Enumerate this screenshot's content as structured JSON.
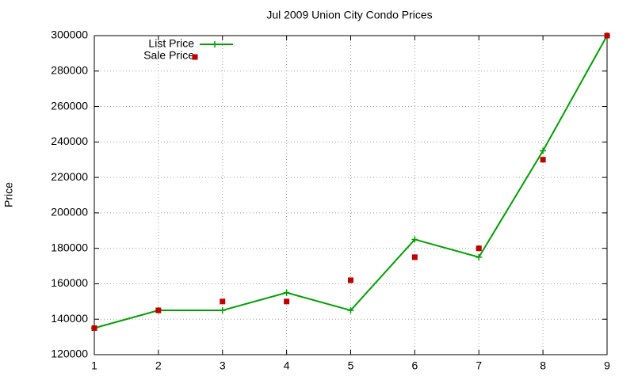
{
  "chart_data": {
    "type": "line",
    "title": "Jul 2009 Union City Condo Prices",
    "y_label": "Price",
    "x": [
      1,
      2,
      3,
      4,
      5,
      6,
      7,
      8,
      9
    ],
    "series": [
      {
        "name": "List Price",
        "color": "#00a000",
        "style": "linespoints",
        "values": [
          135000,
          145000,
          145000,
          155000,
          145000,
          185000,
          175000,
          235000,
          300000
        ]
      },
      {
        "name": "Sale Price",
        "color": "#c00000",
        "style": "points",
        "values": [
          135000,
          145000,
          150000,
          150000,
          162000,
          175000,
          180000,
          230000,
          300000
        ]
      }
    ],
    "xlim": [
      1,
      9
    ],
    "xticks": [
      1,
      2,
      3,
      4,
      5,
      6,
      7,
      8,
      9
    ],
    "ylim": [
      120000,
      300000
    ],
    "yticks": [
      120000,
      140000,
      160000,
      180000,
      200000,
      220000,
      240000,
      260000,
      280000,
      300000
    ],
    "grid": true,
    "legend": "top-left"
  }
}
